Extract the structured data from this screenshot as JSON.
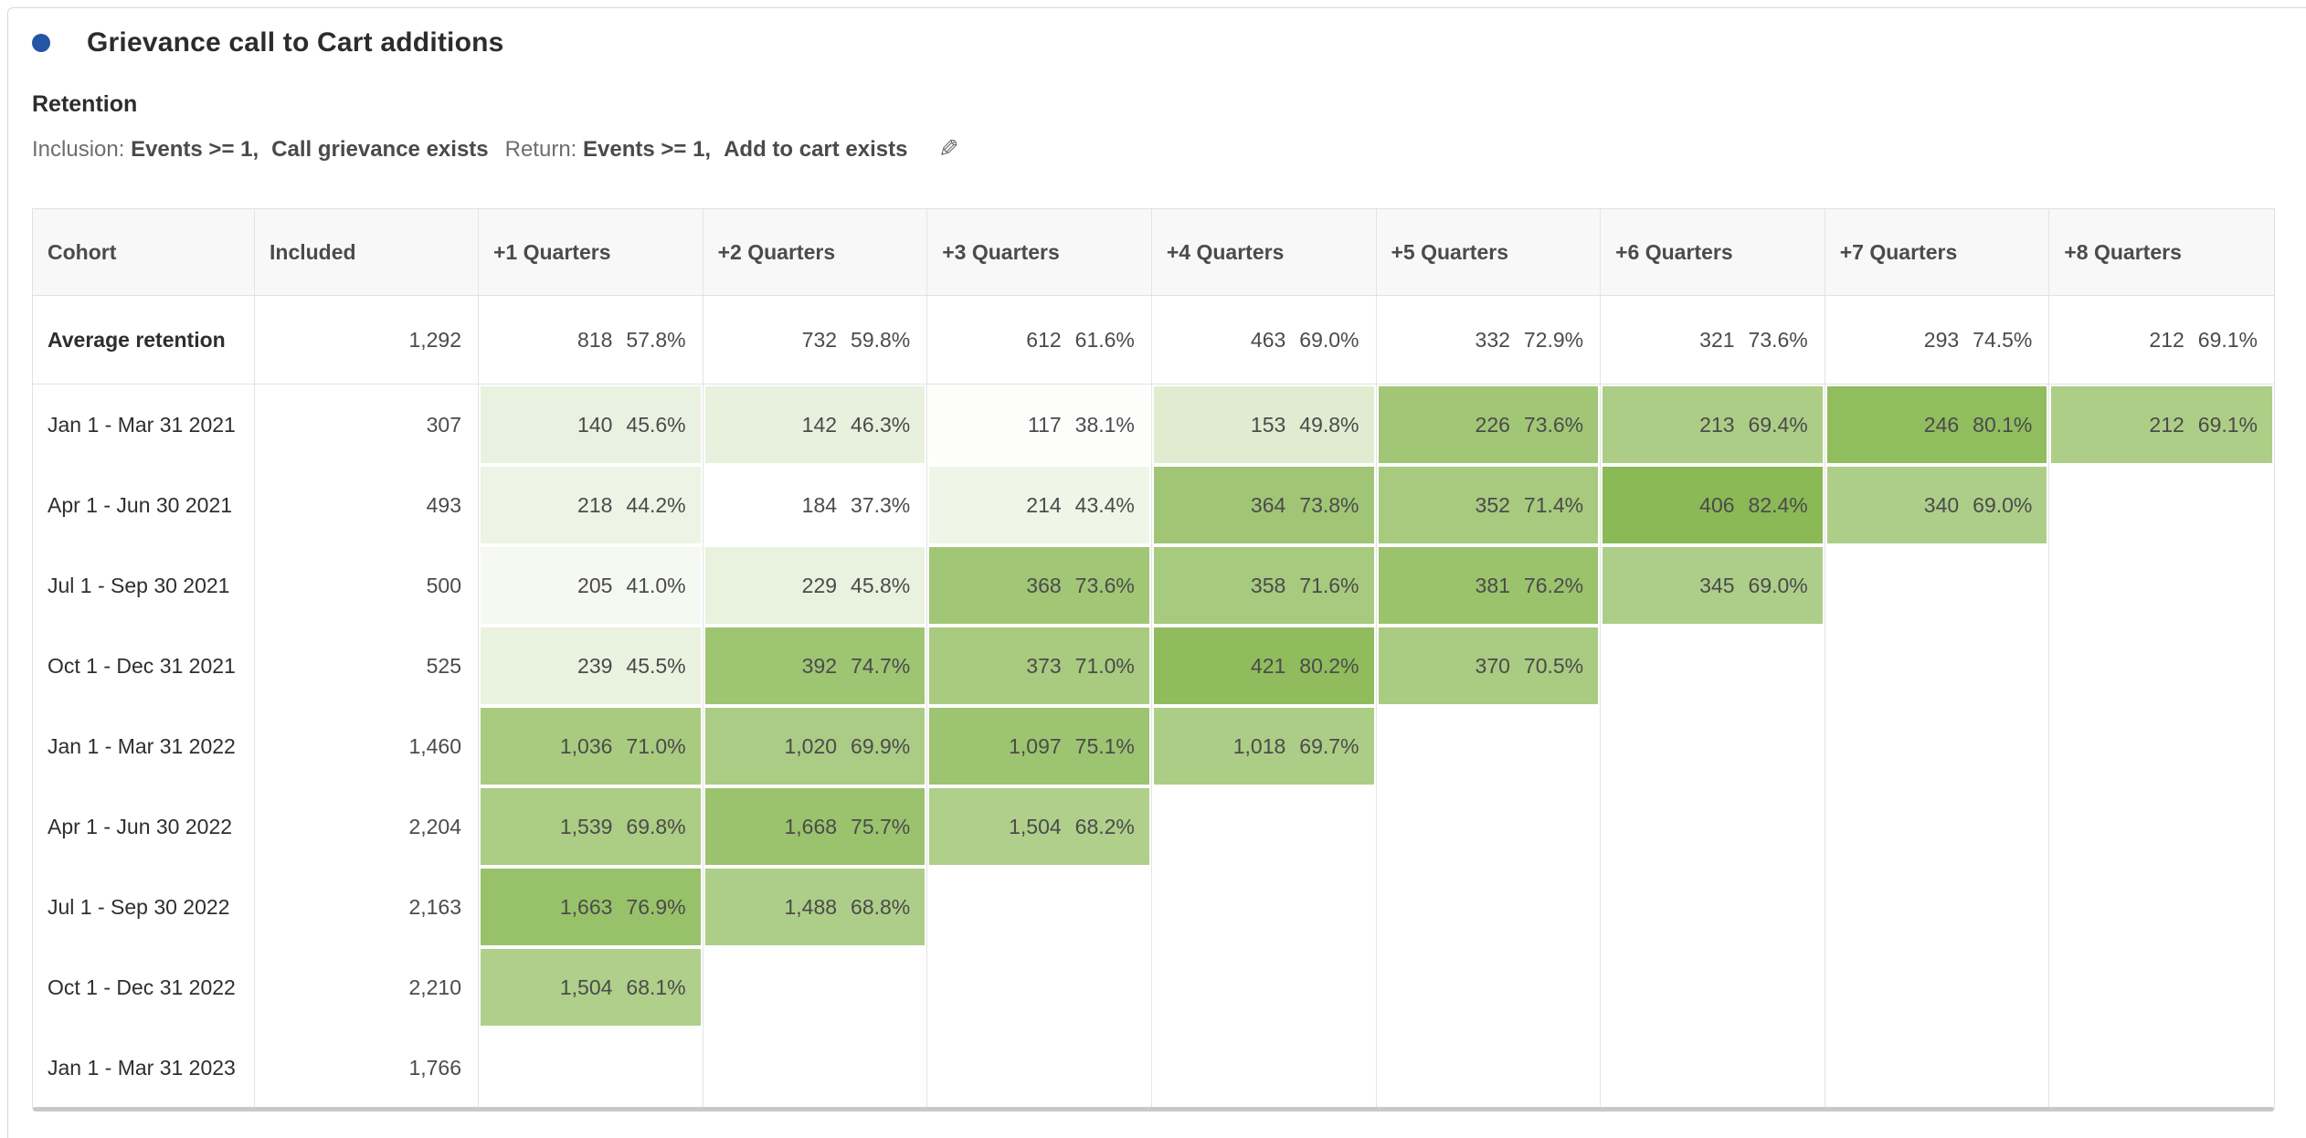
{
  "header": {
    "title": "Grievance call to Cart additions",
    "section_label": "Retention",
    "criteria": {
      "inclusion_label": "Inclusion: ",
      "inclusion_operator": "Events >= 1,",
      "inclusion_event": "Call grievance exists",
      "return_label": "Return: ",
      "return_operator": "Events >= 1,",
      "return_event": "Add to cart exists",
      "edit_icon": "edit-pencil"
    }
  },
  "colors": {
    "bullet": "#2456a6",
    "heatmap_min_color": "#ffffff",
    "heatmap_max_color": "#8ab955",
    "header_bg": "#f8f8f8",
    "table_border": "#e1e1e1",
    "text": "#4b4b4b",
    "scrollbar": "#c8c8c8"
  },
  "chart_data": {
    "type": "heatmap",
    "title": "Grievance call to Cart additions - Retention cohort table",
    "columns": [
      "Cohort",
      "Included",
      "+1 Quarters",
      "+2 Quarters",
      "+3 Quarters",
      "+4 Quarters",
      "+5 Quarters",
      "+6 Quarters",
      "+7 Quarters",
      "+8 Quarters"
    ],
    "heatmap": {
      "min_pct": 37.3,
      "max_pct": 82.4
    },
    "average_row": {
      "label": "Average retention",
      "included": "1,292",
      "cells": [
        {
          "count": "818",
          "pct": "57.8%"
        },
        {
          "count": "732",
          "pct": "59.8%"
        },
        {
          "count": "612",
          "pct": "61.6%"
        },
        {
          "count": "463",
          "pct": "69.0%"
        },
        {
          "count": "332",
          "pct": "72.9%"
        },
        {
          "count": "321",
          "pct": "73.6%"
        },
        {
          "count": "293",
          "pct": "74.5%"
        },
        {
          "count": "212",
          "pct": "69.1%"
        }
      ]
    },
    "rows": [
      {
        "label": "Jan 1 - Mar 31 2021",
        "included": "307",
        "cells": [
          {
            "count": "140",
            "pct": "45.6%"
          },
          {
            "count": "142",
            "pct": "46.3%"
          },
          {
            "count": "117",
            "pct": "38.1%"
          },
          {
            "count": "153",
            "pct": "49.8%"
          },
          {
            "count": "226",
            "pct": "73.6%"
          },
          {
            "count": "213",
            "pct": "69.4%"
          },
          {
            "count": "246",
            "pct": "80.1%"
          },
          {
            "count": "212",
            "pct": "69.1%"
          }
        ]
      },
      {
        "label": "Apr 1 - Jun 30 2021",
        "included": "493",
        "cells": [
          {
            "count": "218",
            "pct": "44.2%"
          },
          {
            "count": "184",
            "pct": "37.3%"
          },
          {
            "count": "214",
            "pct": "43.4%"
          },
          {
            "count": "364",
            "pct": "73.8%"
          },
          {
            "count": "352",
            "pct": "71.4%"
          },
          {
            "count": "406",
            "pct": "82.4%"
          },
          {
            "count": "340",
            "pct": "69.0%"
          },
          null
        ]
      },
      {
        "label": "Jul 1 - Sep 30 2021",
        "included": "500",
        "cells": [
          {
            "count": "205",
            "pct": "41.0%"
          },
          {
            "count": "229",
            "pct": "45.8%"
          },
          {
            "count": "368",
            "pct": "73.6%"
          },
          {
            "count": "358",
            "pct": "71.6%"
          },
          {
            "count": "381",
            "pct": "76.2%"
          },
          {
            "count": "345",
            "pct": "69.0%"
          },
          null,
          null
        ]
      },
      {
        "label": "Oct 1 - Dec 31 2021",
        "included": "525",
        "cells": [
          {
            "count": "239",
            "pct": "45.5%"
          },
          {
            "count": "392",
            "pct": "74.7%"
          },
          {
            "count": "373",
            "pct": "71.0%"
          },
          {
            "count": "421",
            "pct": "80.2%"
          },
          {
            "count": "370",
            "pct": "70.5%"
          },
          null,
          null,
          null
        ]
      },
      {
        "label": "Jan 1 - Mar 31 2022",
        "included": "1,460",
        "cells": [
          {
            "count": "1,036",
            "pct": "71.0%"
          },
          {
            "count": "1,020",
            "pct": "69.9%"
          },
          {
            "count": "1,097",
            "pct": "75.1%"
          },
          {
            "count": "1,018",
            "pct": "69.7%"
          },
          null,
          null,
          null,
          null
        ]
      },
      {
        "label": "Apr 1 - Jun 30 2022",
        "included": "2,204",
        "cells": [
          {
            "count": "1,539",
            "pct": "69.8%"
          },
          {
            "count": "1,668",
            "pct": "75.7%"
          },
          {
            "count": "1,504",
            "pct": "68.2%"
          },
          null,
          null,
          null,
          null,
          null
        ]
      },
      {
        "label": "Jul 1 - Sep 30 2022",
        "included": "2,163",
        "cells": [
          {
            "count": "1,663",
            "pct": "76.9%"
          },
          {
            "count": "1,488",
            "pct": "68.8%"
          },
          null,
          null,
          null,
          null,
          null,
          null
        ]
      },
      {
        "label": "Oct 1 - Dec 31 2022",
        "included": "2,210",
        "cells": [
          {
            "count": "1,504",
            "pct": "68.1%"
          },
          null,
          null,
          null,
          null,
          null,
          null,
          null
        ]
      },
      {
        "label": "Jan 1 - Mar 31 2023",
        "included": "1,766",
        "cells": [
          null,
          null,
          null,
          null,
          null,
          null,
          null,
          null
        ]
      }
    ]
  }
}
